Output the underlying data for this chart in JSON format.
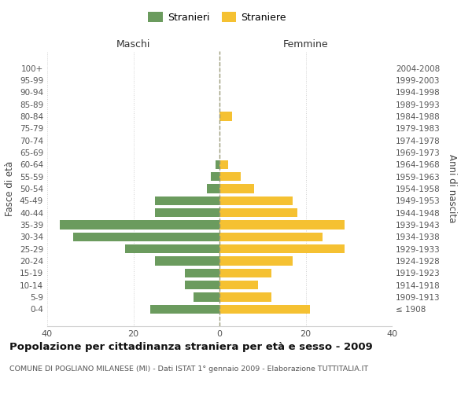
{
  "age_groups": [
    "100+",
    "95-99",
    "90-94",
    "85-89",
    "80-84",
    "75-79",
    "70-74",
    "65-69",
    "60-64",
    "55-59",
    "50-54",
    "45-49",
    "40-44",
    "35-39",
    "30-34",
    "25-29",
    "20-24",
    "15-19",
    "10-14",
    "5-9",
    "0-4"
  ],
  "birth_years": [
    "≤ 1908",
    "1909-1913",
    "1914-1918",
    "1919-1923",
    "1924-1928",
    "1929-1933",
    "1934-1938",
    "1939-1943",
    "1944-1948",
    "1949-1953",
    "1954-1958",
    "1959-1963",
    "1964-1968",
    "1969-1973",
    "1974-1978",
    "1979-1983",
    "1984-1988",
    "1989-1993",
    "1994-1998",
    "1999-2003",
    "2004-2008"
  ],
  "maschi": [
    0,
    0,
    0,
    0,
    0,
    0,
    0,
    0,
    1,
    2,
    3,
    15,
    15,
    37,
    34,
    22,
    15,
    8,
    8,
    6,
    16
  ],
  "femmine": [
    0,
    0,
    0,
    0,
    3,
    0,
    0,
    0,
    2,
    5,
    8,
    17,
    18,
    29,
    24,
    29,
    17,
    12,
    9,
    12,
    21
  ],
  "maschi_color": "#6b9b5e",
  "femmine_color": "#f5c132",
  "title": "Popolazione per cittadinanza straniera per età e sesso - 2009",
  "subtitle": "COMUNE DI POGLIANO MILANESE (MI) - Dati ISTAT 1° gennaio 2009 - Elaborazione TUTTITALIA.IT",
  "xlabel_left": "Maschi",
  "xlabel_right": "Femmine",
  "ylabel_left": "Fasce di età",
  "ylabel_right": "Anni di nascita",
  "legend_stranieri": "Stranieri",
  "legend_straniere": "Straniere",
  "xlim": 40,
  "background_color": "#ffffff",
  "grid_color": "#d0d0d0"
}
